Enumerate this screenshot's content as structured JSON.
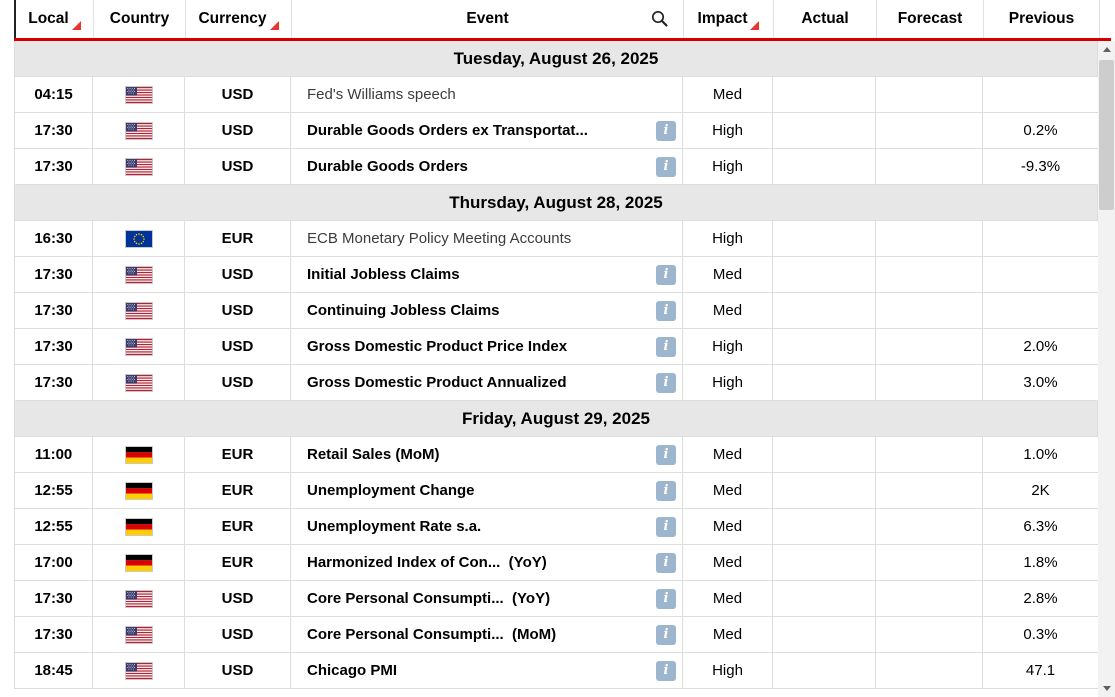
{
  "colors": {
    "header_underline": "#d40000",
    "sort_triangle": "#e8352e",
    "date_row_bg": "#e7e7e7",
    "info_icon_bg": "#9db5cd",
    "row_border": "#dddddd"
  },
  "icons": {
    "info_glyph": "i"
  },
  "header": {
    "columns": [
      {
        "label": "Local",
        "sort": true,
        "search": false
      },
      {
        "label": "Country",
        "sort": false,
        "search": false
      },
      {
        "label": "Currency",
        "sort": true,
        "search": false
      },
      {
        "label": "Event",
        "sort": false,
        "search": true
      },
      {
        "label": "Impact",
        "sort": true,
        "search": false
      },
      {
        "label": "Actual",
        "sort": false,
        "search": false
      },
      {
        "label": "Forecast",
        "sort": false,
        "search": false
      },
      {
        "label": "Previous",
        "sort": false,
        "search": false
      }
    ]
  },
  "groups": [
    {
      "date": "Tuesday, August 26, 2025",
      "rows": [
        {
          "time": "04:15",
          "country": "us",
          "currency": "USD",
          "event": "Fed's Williams speech",
          "bold": false,
          "info": false,
          "impact": "Med",
          "actual": "",
          "forecast": "",
          "previous": ""
        },
        {
          "time": "17:30",
          "country": "us",
          "currency": "USD",
          "event": "Durable Goods Orders ex Transportat...",
          "bold": true,
          "info": true,
          "impact": "High",
          "actual": "",
          "forecast": "",
          "previous": "0.2%"
        },
        {
          "time": "17:30",
          "country": "us",
          "currency": "USD",
          "event": "Durable Goods Orders",
          "bold": true,
          "info": true,
          "impact": "High",
          "actual": "",
          "forecast": "",
          "previous": "-9.3%"
        }
      ]
    },
    {
      "date": "Thursday, August 28, 2025",
      "rows": [
        {
          "time": "16:30",
          "country": "eu",
          "currency": "EUR",
          "event": "ECB Monetary Policy Meeting Accounts",
          "bold": false,
          "info": false,
          "impact": "High",
          "actual": "",
          "forecast": "",
          "previous": ""
        },
        {
          "time": "17:30",
          "country": "us",
          "currency": "USD",
          "event": "Initial Jobless Claims",
          "bold": true,
          "info": true,
          "impact": "Med",
          "actual": "",
          "forecast": "",
          "previous": ""
        },
        {
          "time": "17:30",
          "country": "us",
          "currency": "USD",
          "event": "Continuing Jobless Claims",
          "bold": true,
          "info": true,
          "impact": "Med",
          "actual": "",
          "forecast": "",
          "previous": ""
        },
        {
          "time": "17:30",
          "country": "us",
          "currency": "USD",
          "event": "Gross Domestic Product Price Index",
          "bold": true,
          "info": true,
          "impact": "High",
          "actual": "",
          "forecast": "",
          "previous": "2.0%"
        },
        {
          "time": "17:30",
          "country": "us",
          "currency": "USD",
          "event": "Gross Domestic Product Annualized",
          "bold": true,
          "info": true,
          "impact": "High",
          "actual": "",
          "forecast": "",
          "previous": "3.0%"
        }
      ]
    },
    {
      "date": "Friday, August 29, 2025",
      "rows": [
        {
          "time": "11:00",
          "country": "de",
          "currency": "EUR",
          "event": "Retail Sales (MoM)",
          "bold": true,
          "info": true,
          "impact": "Med",
          "actual": "",
          "forecast": "",
          "previous": "1.0%"
        },
        {
          "time": "12:55",
          "country": "de",
          "currency": "EUR",
          "event": "Unemployment Change",
          "bold": true,
          "info": true,
          "impact": "Med",
          "actual": "",
          "forecast": "",
          "previous": "2K"
        },
        {
          "time": "12:55",
          "country": "de",
          "currency": "EUR",
          "event": "Unemployment Rate s.a.",
          "bold": true,
          "info": true,
          "impact": "Med",
          "actual": "",
          "forecast": "",
          "previous": "6.3%"
        },
        {
          "time": "17:00",
          "country": "de",
          "currency": "EUR",
          "event": "Harmonized Index of Con...  (YoY)",
          "bold": true,
          "info": true,
          "impact": "Med",
          "actual": "",
          "forecast": "",
          "previous": "1.8%"
        },
        {
          "time": "17:30",
          "country": "us",
          "currency": "USD",
          "event": "Core Personal Consumpti...  (YoY)",
          "bold": true,
          "info": true,
          "impact": "Med",
          "actual": "",
          "forecast": "",
          "previous": "2.8%"
        },
        {
          "time": "17:30",
          "country": "us",
          "currency": "USD",
          "event": "Core Personal Consumpti...  (MoM)",
          "bold": true,
          "info": true,
          "impact": "Med",
          "actual": "",
          "forecast": "",
          "previous": "0.3%"
        },
        {
          "time": "18:45",
          "country": "us",
          "currency": "USD",
          "event": "Chicago PMI",
          "bold": true,
          "info": true,
          "impact": "High",
          "actual": "",
          "forecast": "",
          "previous": "47.1"
        }
      ]
    }
  ]
}
